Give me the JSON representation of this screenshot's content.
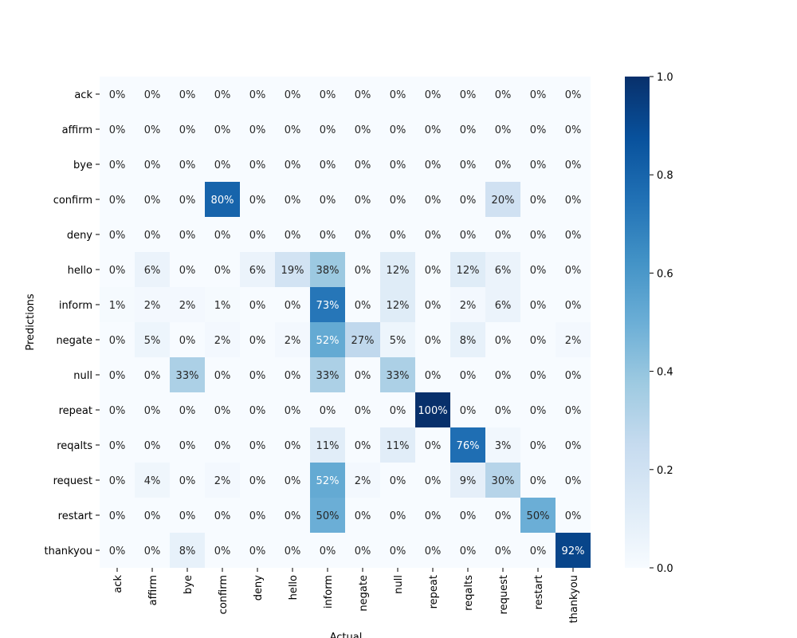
{
  "chart_data": {
    "type": "heatmap",
    "title": "",
    "xlabel": "Actual",
    "ylabel": "Predictions",
    "x_categories": [
      "ack",
      "affirm",
      "bye",
      "confirm",
      "deny",
      "hello",
      "inform",
      "negate",
      "null",
      "repeat",
      "reqalts",
      "request",
      "restart",
      "thankyou"
    ],
    "y_categories": [
      "ack",
      "affirm",
      "bye",
      "confirm",
      "deny",
      "hello",
      "inform",
      "negate",
      "null",
      "repeat",
      "reqalts",
      "request",
      "restart",
      "thankyou"
    ],
    "values": [
      [
        0,
        0,
        0,
        0,
        0,
        0,
        0,
        0,
        0,
        0,
        0,
        0,
        0,
        0
      ],
      [
        0,
        0,
        0,
        0,
        0,
        0,
        0,
        0,
        0,
        0,
        0,
        0,
        0,
        0
      ],
      [
        0,
        0,
        0,
        0,
        0,
        0,
        0,
        0,
        0,
        0,
        0,
        0,
        0,
        0
      ],
      [
        0,
        0,
        0,
        0.8,
        0,
        0,
        0,
        0,
        0,
        0,
        0,
        0.2,
        0,
        0
      ],
      [
        0,
        0,
        0,
        0,
        0,
        0,
        0,
        0,
        0,
        0,
        0,
        0,
        0,
        0
      ],
      [
        0,
        0.06,
        0,
        0,
        0.06,
        0.19,
        0.38,
        0,
        0.12,
        0,
        0.12,
        0.06,
        0,
        0
      ],
      [
        0.01,
        0.02,
        0.02,
        0.01,
        0,
        0,
        0.73,
        0,
        0.12,
        0,
        0.02,
        0.06,
        0,
        0
      ],
      [
        0,
        0.05,
        0,
        0.02,
        0,
        0.02,
        0.52,
        0.27,
        0.05,
        0,
        0.08,
        0,
        0,
        0.02
      ],
      [
        0,
        0,
        0.33,
        0,
        0,
        0,
        0.33,
        0,
        0.33,
        0,
        0,
        0,
        0,
        0
      ],
      [
        0,
        0,
        0,
        0,
        0,
        0,
        0,
        0,
        0,
        1.0,
        0,
        0,
        0,
        0
      ],
      [
        0,
        0,
        0,
        0,
        0,
        0,
        0.11,
        0,
        0.11,
        0,
        0.76,
        0.03,
        0,
        0
      ],
      [
        0,
        0.04,
        0,
        0.02,
        0,
        0,
        0.52,
        0.02,
        0,
        0,
        0.09,
        0.3,
        0,
        0
      ],
      [
        0,
        0,
        0,
        0,
        0,
        0,
        0.5,
        0,
        0,
        0,
        0,
        0,
        0.5,
        0
      ],
      [
        0,
        0,
        0.08,
        0,
        0,
        0,
        0,
        0,
        0,
        0,
        0,
        0,
        0,
        0.92
      ]
    ],
    "cell_labels": [
      [
        "0%",
        "0%",
        "0%",
        "0%",
        "0%",
        "0%",
        "0%",
        "0%",
        "0%",
        "0%",
        "0%",
        "0%",
        "0%",
        "0%"
      ],
      [
        "0%",
        "0%",
        "0%",
        "0%",
        "0%",
        "0%",
        "0%",
        "0%",
        "0%",
        "0%",
        "0%",
        "0%",
        "0%",
        "0%"
      ],
      [
        "0%",
        "0%",
        "0%",
        "0%",
        "0%",
        "0%",
        "0%",
        "0%",
        "0%",
        "0%",
        "0%",
        "0%",
        "0%",
        "0%"
      ],
      [
        "0%",
        "0%",
        "0%",
        "80%",
        "0%",
        "0%",
        "0%",
        "0%",
        "0%",
        "0%",
        "0%",
        "20%",
        "0%",
        "0%"
      ],
      [
        "0%",
        "0%",
        "0%",
        "0%",
        "0%",
        "0%",
        "0%",
        "0%",
        "0%",
        "0%",
        "0%",
        "0%",
        "0%",
        "0%"
      ],
      [
        "0%",
        "6%",
        "0%",
        "0%",
        "6%",
        "19%",
        "38%",
        "0%",
        "12%",
        "0%",
        "12%",
        "6%",
        "0%",
        "0%"
      ],
      [
        "1%",
        "2%",
        "2%",
        "1%",
        "0%",
        "0%",
        "73%",
        "0%",
        "12%",
        "0%",
        "2%",
        "6%",
        "0%",
        "0%"
      ],
      [
        "0%",
        "5%",
        "0%",
        "2%",
        "0%",
        "2%",
        "52%",
        "27%",
        "5%",
        "0%",
        "8%",
        "0%",
        "0%",
        "2%"
      ],
      [
        "0%",
        "0%",
        "33%",
        "0%",
        "0%",
        "0%",
        "33%",
        "0%",
        "33%",
        "0%",
        "0%",
        "0%",
        "0%",
        "0%"
      ],
      [
        "0%",
        "0%",
        "0%",
        "0%",
        "0%",
        "0%",
        "0%",
        "0%",
        "0%",
        "100%",
        "0%",
        "0%",
        "0%",
        "0%"
      ],
      [
        "0%",
        "0%",
        "0%",
        "0%",
        "0%",
        "0%",
        "11%",
        "0%",
        "11%",
        "0%",
        "76%",
        "3%",
        "0%",
        "0%"
      ],
      [
        "0%",
        "4%",
        "0%",
        "2%",
        "0%",
        "0%",
        "52%",
        "2%",
        "0%",
        "0%",
        "9%",
        "30%",
        "0%",
        "0%"
      ],
      [
        "0%",
        "0%",
        "0%",
        "0%",
        "0%",
        "0%",
        "50%",
        "0%",
        "0%",
        "0%",
        "0%",
        "0%",
        "50%",
        "0%"
      ],
      [
        "0%",
        "0%",
        "8%",
        "0%",
        "0%",
        "0%",
        "0%",
        "0%",
        "0%",
        "0%",
        "0%",
        "0%",
        "0%",
        "92%"
      ]
    ],
    "colorbar": {
      "range": [
        0,
        1
      ],
      "ticks": [
        "0.0",
        "0.2",
        "0.4",
        "0.6",
        "0.8",
        "1.0"
      ],
      "colormap": "Blues",
      "low_color": "#f7fbff",
      "high_color": "#08306b"
    }
  }
}
